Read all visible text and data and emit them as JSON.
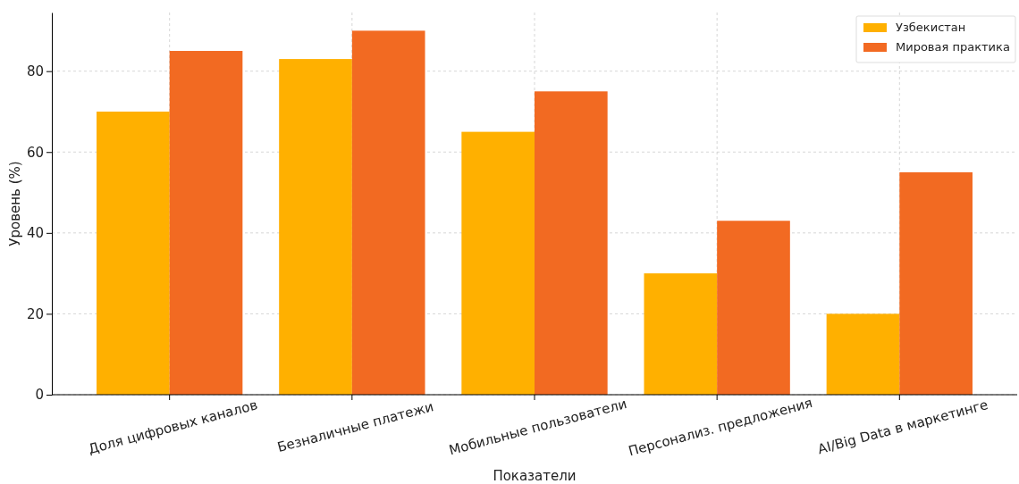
{
  "chart_data": {
    "type": "bar",
    "xlabel": "Показатели",
    "ylabel": "Уровень (%)",
    "categories": [
      "Доля цифровых каналов",
      "Безналичные платежи",
      "Мобильные пользователи",
      "Персонализ. предложения",
      "AI/Big Data в маркетинге"
    ],
    "series": [
      {
        "name": "Узбекистан",
        "color": "#ffb000",
        "values": [
          70,
          83,
          65,
          30,
          20
        ]
      },
      {
        "name": "Мировая практика",
        "color": "#f26a22",
        "values": [
          85,
          90,
          75,
          43,
          55
        ]
      }
    ],
    "ylim": [
      0,
      94.5
    ],
    "yticks": [
      0,
      20,
      40,
      60,
      80
    ],
    "grid": true,
    "legend": "top right"
  }
}
